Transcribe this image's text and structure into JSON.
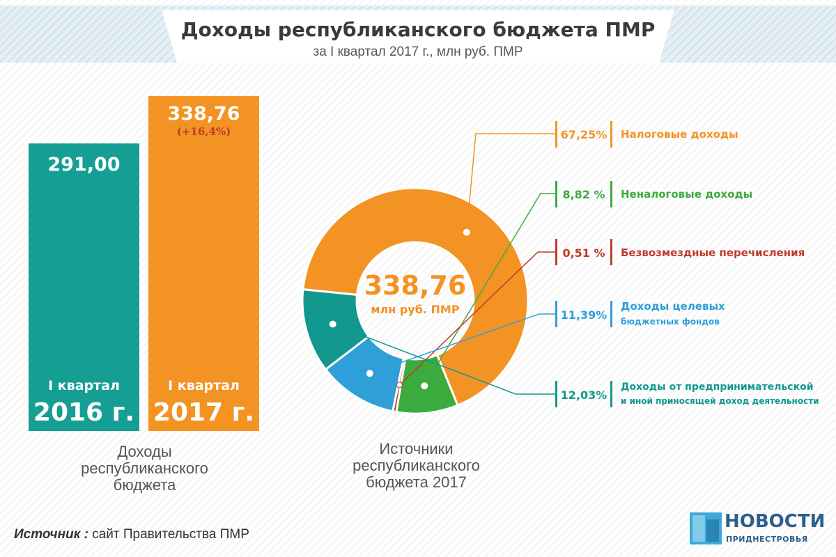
{
  "header": {
    "title": "Доходы республиканского бюджета ПМР",
    "subtitle": "за I квартал 2017 г., млн руб. ПМР"
  },
  "chart_data": [
    {
      "type": "bar",
      "categories": [
        "I квартал 2016 г.",
        "I квартал 2017 г."
      ],
      "values": [
        291.0,
        338.76
      ],
      "value_labels": [
        "291,00",
        "338,76"
      ],
      "change_label": "(+16,4%)",
      "bars": [
        {
          "quarter": "I квартал",
          "year": "2016 г.",
          "value_label": "291,00",
          "color": "#159e94"
        },
        {
          "quarter": "I квартал",
          "year": "2017 г.",
          "value_label": "338,76",
          "color": "#f39323"
        }
      ],
      "caption": [
        "Доходы",
        "республиканского",
        "бюджета"
      ]
    },
    {
      "type": "pie",
      "center_value": "338,76",
      "center_unit": "млн руб. ПМР",
      "slices": [
        {
          "label": "Налоговые доходы",
          "label2": "",
          "value": 67.25,
          "pct_label": "67,25%",
          "color": "#f39323"
        },
        {
          "label": "Неналоговые доходы",
          "label2": "",
          "value": 8.82,
          "pct_label": "8,82 %",
          "color": "#3cab3e"
        },
        {
          "label": "Безвозмездные перечисления",
          "label2": "",
          "value": 0.51,
          "pct_label": "0,51 %",
          "color": "#c0392b"
        },
        {
          "label": "Доходы целевых",
          "label2": "бюджетных фондов",
          "value": 11.39,
          "pct_label": "11,39%",
          "color": "#2e9fd8"
        },
        {
          "label": "Доходы от предпринимательской",
          "label2": "и иной приносящей доход деятельности",
          "value": 12.03,
          "pct_label": "12,03%",
          "color": "#12988f"
        }
      ],
      "caption": [
        "Источники",
        "республиканского",
        "бюджета 2017"
      ]
    }
  ],
  "footer": {
    "source_label": "Источник :",
    "source_text": " сайт Правительства ПМР",
    "logo_name": "НОВОСТИ",
    "logo_sub": "ПРИДНЕСТРОВЬЯ"
  }
}
